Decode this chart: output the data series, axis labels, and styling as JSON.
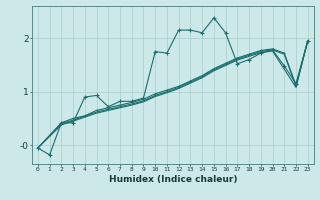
{
  "xlabel": "Humidex (Indice chaleur)",
  "bg_color": "#cde8e8",
  "grid_color": "#aacccc",
  "line_color": "#1a6e6e",
  "xlim": [
    -0.5,
    23.5
  ],
  "ylim": [
    -0.35,
    2.6
  ],
  "yticks": [
    0.0,
    1.0,
    2.0
  ],
  "ytick_labels": [
    "-0",
    "1",
    "2"
  ],
  "xticks": [
    0,
    1,
    2,
    3,
    4,
    5,
    6,
    7,
    8,
    9,
    10,
    11,
    12,
    13,
    14,
    15,
    16,
    17,
    18,
    19,
    20,
    21,
    22,
    23
  ],
  "line1_x": [
    0,
    1,
    2,
    3,
    4,
    5,
    6,
    7,
    8,
    9,
    10,
    11,
    12,
    13,
    14,
    15,
    16,
    17,
    18,
    19,
    20,
    21,
    22,
    23
  ],
  "line1_y": [
    -0.05,
    -0.18,
    0.42,
    0.42,
    0.9,
    0.93,
    0.72,
    0.82,
    0.82,
    0.88,
    1.75,
    1.72,
    2.15,
    2.15,
    2.1,
    2.38,
    2.1,
    1.52,
    1.6,
    1.72,
    1.78,
    1.48,
    1.15,
    1.95
  ],
  "line2_x": [
    0,
    2,
    3,
    4,
    5,
    6,
    7,
    8,
    9,
    10,
    11,
    12,
    13,
    14,
    15,
    16,
    17,
    18,
    19,
    20,
    21,
    22,
    23
  ],
  "line2_y": [
    -0.05,
    0.42,
    0.5,
    0.55,
    0.65,
    0.7,
    0.75,
    0.8,
    0.86,
    0.96,
    1.03,
    1.1,
    1.2,
    1.3,
    1.43,
    1.53,
    1.63,
    1.7,
    1.77,
    1.8,
    1.72,
    1.12,
    1.95
  ],
  "line3_x": [
    0,
    2,
    3,
    5,
    6,
    7,
    8,
    9,
    10,
    11,
    12,
    13,
    14,
    15,
    16,
    17,
    18,
    19,
    20,
    21,
    22,
    23
  ],
  "line3_y": [
    -0.05,
    0.4,
    0.47,
    0.62,
    0.67,
    0.72,
    0.77,
    0.83,
    0.93,
    1.0,
    1.08,
    1.18,
    1.28,
    1.41,
    1.51,
    1.61,
    1.68,
    1.75,
    1.78,
    1.7,
    1.1,
    1.95
  ],
  "line4_x": [
    0,
    2,
    3,
    5,
    6,
    7,
    8,
    9,
    10,
    11,
    12,
    13,
    14,
    15,
    16,
    17,
    18,
    19,
    20,
    22,
    23
  ],
  "line4_y": [
    -0.05,
    0.38,
    0.45,
    0.6,
    0.65,
    0.7,
    0.75,
    0.81,
    0.91,
    0.98,
    1.06,
    1.16,
    1.26,
    1.39,
    1.49,
    1.59,
    1.66,
    1.73,
    1.76,
    1.08,
    1.95
  ],
  "marker": "+",
  "marker_size": 3,
  "line_width": 0.8
}
